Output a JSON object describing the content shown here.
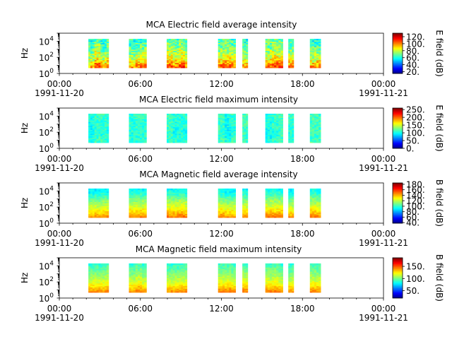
{
  "figure": {
    "background": "#ffffff"
  },
  "chart_data": [
    {
      "type": "heatmap",
      "title": "MCA  Electric field average intensity",
      "ylabel": "Hz",
      "yscale": "log",
      "ylim": [
        1,
        100000
      ],
      "y_ticks": [
        {
          "base": "10",
          "exp": "0"
        },
        {
          "base": "10",
          "exp": "2"
        },
        {
          "base": "10",
          "exp": "4"
        }
      ],
      "x_ticks": [
        "00:00",
        "06:00",
        "12:00",
        "18:00",
        "00:00"
      ],
      "x_dates": [
        "1991-11-20",
        "1991-11-21"
      ],
      "xlim_hours": [
        0,
        24
      ],
      "colorbar": {
        "label": "E field (dB)",
        "ticks": [
          "20.",
          "40.",
          "60.",
          "80.",
          "100.",
          "120."
        ],
        "tick_values": [
          20,
          40,
          60,
          80,
          100,
          120
        ],
        "range": [
          15,
          130
        ]
      },
      "freq_range": [
        5,
        20000
      ],
      "profile": [
        [
          5,
          105
        ],
        [
          20,
          95
        ],
        [
          60,
          85
        ],
        [
          300,
          78
        ],
        [
          3000,
          70
        ],
        [
          20000,
          65
        ]
      ],
      "noise": 12
    },
    {
      "type": "heatmap",
      "title": "MCA  Electric field maximum intensity",
      "ylabel": "Hz",
      "yscale": "log",
      "ylim": [
        1,
        100000
      ],
      "y_ticks": [
        {
          "base": "10",
          "exp": "0"
        },
        {
          "base": "10",
          "exp": "2"
        },
        {
          "base": "10",
          "exp": "4"
        }
      ],
      "x_ticks": [
        "00:00",
        "06:00",
        "12:00",
        "18:00",
        "00:00"
      ],
      "x_dates": [
        "1991-11-20",
        "1991-11-21"
      ],
      "xlim_hours": [
        0,
        24
      ],
      "colorbar": {
        "label": "E field (dB)",
        "ticks": [
          "0.",
          "50.",
          "100.",
          "150.",
          "200.",
          "250."
        ],
        "tick_values": [
          0,
          50,
          100,
          150,
          200,
          250
        ],
        "range": [
          0,
          260
        ]
      },
      "freq_range": [
        5,
        20000
      ],
      "profile": [
        [
          5,
          110
        ],
        [
          100,
          105
        ],
        [
          20000,
          110
        ]
      ],
      "noise": 14
    },
    {
      "type": "heatmap",
      "title": "MCA  Magnetic field average intensity",
      "ylabel": "Hz",
      "yscale": "log",
      "ylim": [
        1,
        100000
      ],
      "y_ticks": [
        {
          "base": "10",
          "exp": "0"
        },
        {
          "base": "10",
          "exp": "2"
        },
        {
          "base": "10",
          "exp": "4"
        }
      ],
      "x_ticks": [
        "00:00",
        "06:00",
        "12:00",
        "18:00",
        "00:00"
      ],
      "x_dates": [
        "1991-11-20",
        "1991-11-21"
      ],
      "xlim_hours": [
        0,
        24
      ],
      "colorbar": {
        "label": "B field (dB)",
        "ticks": [
          "40.",
          "60.",
          "80.",
          "100.",
          "120.",
          "140.",
          "160.",
          "180."
        ],
        "tick_values": [
          40,
          60,
          80,
          100,
          120,
          140,
          160,
          180
        ],
        "range": [
          38,
          185
        ]
      },
      "freq_range": [
        5,
        20000
      ],
      "profile": [
        [
          5,
          150
        ],
        [
          15,
          140
        ],
        [
          100,
          125
        ],
        [
          800,
          112
        ],
        [
          5000,
          98
        ],
        [
          20000,
          92
        ]
      ],
      "noise": 6
    },
    {
      "type": "heatmap",
      "title": "MCA  Magnetic field maximum intensity",
      "ylabel": "Hz",
      "yscale": "log",
      "ylim": [
        1,
        100000
      ],
      "y_ticks": [
        {
          "base": "10",
          "exp": "0"
        },
        {
          "base": "10",
          "exp": "2"
        },
        {
          "base": "10",
          "exp": "4"
        }
      ],
      "x_ticks": [
        "00:00",
        "06:00",
        "12:00",
        "18:00",
        "00:00"
      ],
      "x_dates": [
        "1991-11-20",
        "1991-11-21"
      ],
      "xlim_hours": [
        0,
        24
      ],
      "colorbar": {
        "label": "B field (dB)",
        "ticks": [
          "50.",
          "100.",
          "150."
        ],
        "tick_values": [
          50,
          100,
          150
        ],
        "range": [
          20,
          185
        ]
      },
      "freq_range": [
        5,
        20000
      ],
      "profile": [
        [
          5,
          145
        ],
        [
          15,
          135
        ],
        [
          100,
          118
        ],
        [
          1000,
          105
        ],
        [
          20000,
          90
        ]
      ],
      "noise": 6
    }
  ],
  "data_segments_hours": [
    [
      2.15,
      3.65
    ],
    [
      5.15,
      6.45
    ],
    [
      7.95,
      9.45
    ],
    [
      11.75,
      13.05
    ],
    [
      13.55,
      13.95
    ],
    [
      15.25,
      16.55
    ],
    [
      16.95,
      17.35
    ],
    [
      18.55,
      19.35
    ]
  ]
}
